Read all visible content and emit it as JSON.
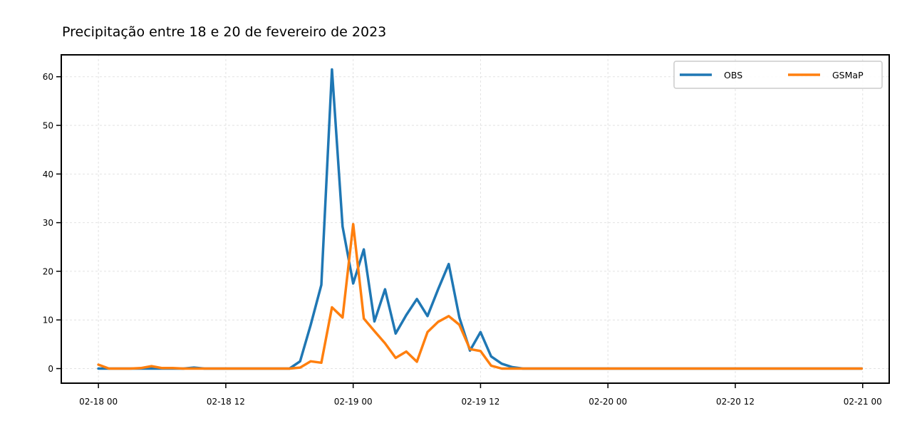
{
  "chart_data": {
    "type": "line",
    "title": "Precipitação entre 18 e 20 de fevereiro de 2023",
    "xlabel": "",
    "ylabel": "",
    "x_unit": "hours since 2023-02-18 00:00",
    "x": [
      0,
      2,
      4,
      6,
      8,
      10,
      12,
      14,
      16,
      18,
      20,
      22,
      24,
      26,
      28,
      30,
      32,
      34,
      36,
      38,
      40,
      42,
      44,
      46,
      48,
      50,
      52,
      54,
      56,
      58,
      60,
      62,
      64,
      66,
      68,
      70,
      72
    ],
    "xlim": [
      -3.5,
      74.5
    ],
    "ylim": [
      -3,
      64.5
    ],
    "xticks": [
      {
        "value": 0,
        "label": "02-18 00"
      },
      {
        "value": 12,
        "label": "02-18 12"
      },
      {
        "value": 24,
        "label": "02-19 00"
      },
      {
        "value": 36,
        "label": "02-19 12"
      },
      {
        "value": 48,
        "label": "02-20 00"
      },
      {
        "value": 60,
        "label": "02-20 12"
      },
      {
        "value": 72,
        "label": "02-21 00"
      }
    ],
    "yticks": [
      {
        "value": 0,
        "label": "0"
      },
      {
        "value": 10,
        "label": "10"
      },
      {
        "value": 20,
        "label": "20"
      },
      {
        "value": 30,
        "label": "30"
      },
      {
        "value": 40,
        "label": "40"
      },
      {
        "value": 50,
        "label": "50"
      },
      {
        "value": 60,
        "label": "60"
      }
    ],
    "grid": true,
    "legend_position": "top-right",
    "series": [
      {
        "name": "OBS",
        "color": "#1f77b4",
        "points": [
          [
            0,
            0
          ],
          [
            1,
            0
          ],
          [
            2,
            0
          ],
          [
            3,
            0
          ],
          [
            4,
            0
          ],
          [
            5,
            0
          ],
          [
            6,
            0
          ],
          [
            7,
            0
          ],
          [
            8,
            0
          ],
          [
            9,
            0.2
          ],
          [
            10,
            0
          ],
          [
            11,
            0
          ],
          [
            12,
            0
          ],
          [
            13,
            0
          ],
          [
            14,
            0
          ],
          [
            15,
            0
          ],
          [
            16,
            0
          ],
          [
            17,
            0
          ],
          [
            18,
            0
          ],
          [
            19,
            1.5
          ],
          [
            20,
            9
          ],
          [
            21,
            17.2
          ],
          [
            22,
            61.5
          ],
          [
            23,
            29.2
          ],
          [
            24,
            17.5
          ],
          [
            25,
            24.5
          ],
          [
            26,
            9.7
          ],
          [
            27,
            16.3
          ],
          [
            28,
            7.2
          ],
          [
            29,
            11
          ],
          [
            30,
            14.3
          ],
          [
            31,
            10.8
          ],
          [
            32,
            16.3
          ],
          [
            33,
            21.5
          ],
          [
            34,
            10.5
          ],
          [
            35,
            3.7
          ],
          [
            36,
            7.5
          ],
          [
            37,
            2.5
          ],
          [
            38,
            1
          ],
          [
            39,
            0.3
          ],
          [
            40,
            0
          ],
          [
            41,
            0
          ],
          [
            42,
            0
          ],
          [
            45,
            0
          ],
          [
            48,
            0
          ],
          [
            52,
            0
          ],
          [
            56,
            0
          ],
          [
            60,
            0
          ],
          [
            64,
            0
          ],
          [
            68,
            0
          ],
          [
            71.9,
            0
          ]
        ]
      },
      {
        "name": "GSMaP",
        "color": "#ff7f0e",
        "points": [
          [
            0,
            0.8
          ],
          [
            1,
            0
          ],
          [
            2,
            0
          ],
          [
            3,
            0
          ],
          [
            4,
            0.1
          ],
          [
            5,
            0.5
          ],
          [
            6,
            0.1
          ],
          [
            7,
            0.1
          ],
          [
            8,
            0
          ],
          [
            9,
            0
          ],
          [
            10,
            0
          ],
          [
            11,
            0
          ],
          [
            12,
            0
          ],
          [
            13,
            0
          ],
          [
            14,
            0
          ],
          [
            15,
            0
          ],
          [
            16,
            0
          ],
          [
            17,
            0
          ],
          [
            18,
            0
          ],
          [
            19,
            0.2
          ],
          [
            20,
            1.5
          ],
          [
            21,
            1.2
          ],
          [
            22,
            12.6
          ],
          [
            23,
            10.5
          ],
          [
            24,
            29.7
          ],
          [
            25,
            10.3
          ],
          [
            26,
            7.7
          ],
          [
            27,
            5.2
          ],
          [
            28,
            2.2
          ],
          [
            29,
            3.5
          ],
          [
            30,
            1.4
          ],
          [
            31,
            7.5
          ],
          [
            32,
            9.6
          ],
          [
            33,
            10.8
          ],
          [
            34,
            9
          ],
          [
            35,
            4
          ],
          [
            36,
            3.6
          ],
          [
            37,
            0.6
          ],
          [
            38,
            0
          ],
          [
            39,
            0
          ],
          [
            40,
            0
          ],
          [
            41,
            0
          ],
          [
            42,
            0
          ],
          [
            45,
            0
          ],
          [
            48,
            0
          ],
          [
            52,
            0
          ],
          [
            56,
            0
          ],
          [
            60,
            0
          ],
          [
            64,
            0
          ],
          [
            68,
            0
          ],
          [
            71.9,
            0
          ]
        ]
      }
    ]
  }
}
